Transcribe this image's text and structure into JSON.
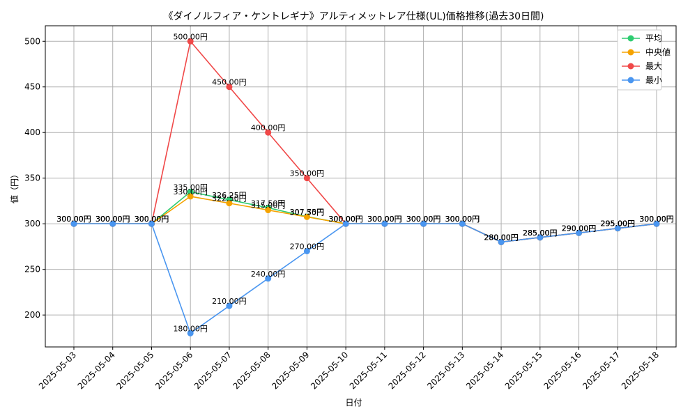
{
  "chart_data": {
    "type": "line",
    "title": "《ダイノルフィア・ケントレギナ》アルティメットレア仕様(UL)価格推移(過去30日間)",
    "xlabel": "日付",
    "ylabel": "値（円）",
    "categories": [
      "2025-05-03",
      "2025-05-04",
      "2025-05-05",
      "2025-05-06",
      "2025-05-07",
      "2025-05-08",
      "2025-05-09",
      "2025-05-10",
      "2025-05-11",
      "2025-05-12",
      "2025-05-13",
      "2025-05-14",
      "2025-05-15",
      "2025-05-16",
      "2025-05-17",
      "2025-05-18"
    ],
    "ylim": [
      165,
      517
    ],
    "yticks": [
      200,
      250,
      300,
      350,
      400,
      450,
      500
    ],
    "grid": true,
    "legend_position": "top-right",
    "series": [
      {
        "name": "平均",
        "color": "#2ecc71",
        "values": [
          300,
          300,
          300,
          335,
          326.25,
          317.5,
          307.75,
          300,
          300,
          300,
          300,
          280,
          285,
          290,
          295,
          300
        ]
      },
      {
        "name": "中央値",
        "color": "#f5a300",
        "values": [
          300,
          300,
          300,
          330,
          322.5,
          315,
          307.5,
          300,
          300,
          300,
          300,
          280,
          285,
          290,
          295,
          300
        ]
      },
      {
        "name": "最大",
        "color": "#f04848",
        "values": [
          300,
          300,
          300,
          500,
          450,
          400,
          350,
          300,
          300,
          300,
          300,
          280,
          285,
          290,
          295,
          300
        ]
      },
      {
        "name": "最小",
        "color": "#4a96f0",
        "values": [
          300,
          300,
          300,
          180,
          210,
          240,
          270,
          300,
          300,
          300,
          300,
          280,
          285,
          290,
          295,
          300
        ]
      }
    ],
    "label_suffix": "円"
  }
}
